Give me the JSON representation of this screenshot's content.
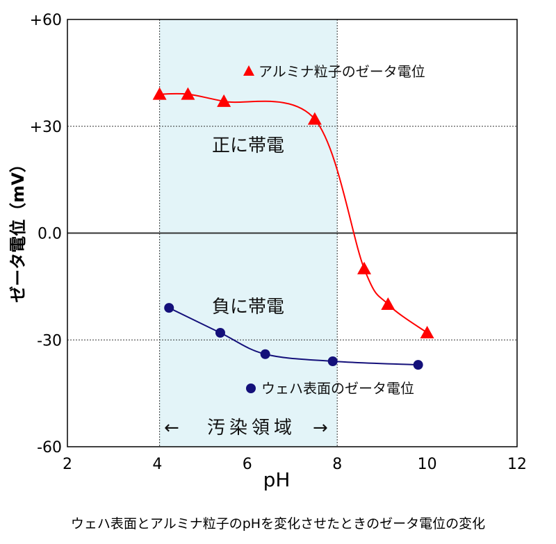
{
  "chart_data": {
    "type": "line",
    "title": "",
    "caption": "ウェハ表面とアルミナ粒子のpHを変化させたときのゼータ電位の変化",
    "xlabel": "pH",
    "ylabel": "ゼータ電位（mV）",
    "xlim": [
      2,
      12
    ],
    "ylim": [
      -60,
      60
    ],
    "x_ticks": [
      2,
      4,
      6,
      8,
      10,
      12
    ],
    "y_ticks": [
      {
        "value": 60,
        "label": "+60"
      },
      {
        "value": 30,
        "label": "+30"
      },
      {
        "value": 0,
        "label": "0.0"
      },
      {
        "value": -30,
        "label": "-30"
      },
      {
        "value": -60,
        "label": "-60"
      }
    ],
    "grid": "dotted horizontal at ±30",
    "shaded_region": {
      "x": [
        4.05,
        8.0
      ],
      "label": "汚染領域",
      "color": "#e3f4f8"
    },
    "annotations": [
      "正に帯電",
      "負に帯電"
    ],
    "series": [
      {
        "name": "アルミナ粒子のゼータ電位",
        "marker": "triangle",
        "color": "#ff0000",
        "x": [
          4.05,
          4.68,
          5.48,
          7.5,
          8.6,
          9.13,
          10.0
        ],
        "y": [
          39,
          39,
          37,
          32,
          -10,
          -20,
          -28
        ]
      },
      {
        "name": "ウェハ表面のゼータ電位",
        "marker": "circle",
        "color": "#14107a",
        "x": [
          4.26,
          5.4,
          6.4,
          7.9,
          9.8
        ],
        "y": [
          -21,
          -28,
          -34,
          -36,
          -37
        ]
      }
    ]
  }
}
